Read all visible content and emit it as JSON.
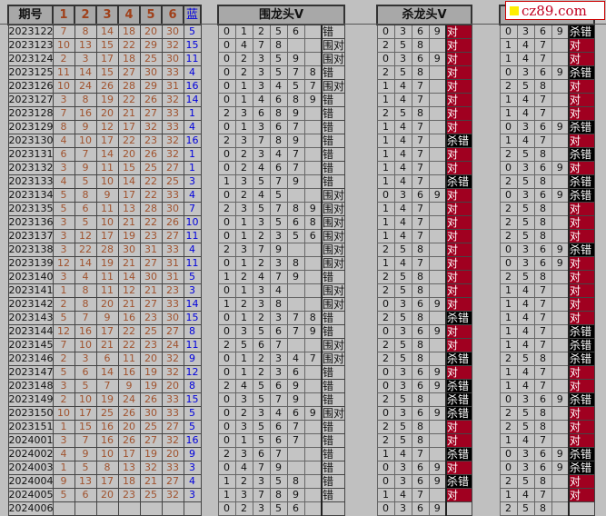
{
  "headers": {
    "period": "期号",
    "nums": [
      "1",
      "2",
      "3",
      "4",
      "5",
      "6"
    ],
    "blue": "蓝",
    "wei": "围龙头V",
    "sha1": "杀龙头V",
    "sha2": ""
  },
  "watermark": "cz89.com",
  "colors": {
    "red_number": "#a0522d",
    "blue_number": "#0000dd",
    "hit": "#a00020",
    "miss": "#000000"
  },
  "rows": [
    {
      "p": "2023122",
      "n": [
        "7",
        "8",
        "14",
        "18",
        "20",
        "30"
      ],
      "b": "5",
      "w": [
        "0",
        "1",
        "2",
        "5",
        "6",
        ""
      ],
      "wr": "错",
      "s1": [
        "0",
        "3",
        "6",
        "9"
      ],
      "r1": "对",
      "s2": [
        "0",
        "3",
        "6",
        "9"
      ],
      "r2": "杀错"
    },
    {
      "p": "2023123",
      "n": [
        "10",
        "13",
        "15",
        "22",
        "29",
        "32"
      ],
      "b": "15",
      "w": [
        "0",
        "4",
        "7",
        "8",
        "",
        ""
      ],
      "wr": "围对",
      "s1": [
        "2",
        "5",
        "8",
        ""
      ],
      "r1": "对",
      "s2": [
        "1",
        "4",
        "7",
        ""
      ],
      "r2": "对"
    },
    {
      "p": "2023124",
      "n": [
        "2",
        "3",
        "17",
        "18",
        "25",
        "30"
      ],
      "b": "11",
      "w": [
        "0",
        "2",
        "3",
        "5",
        "9",
        ""
      ],
      "wr": "围对",
      "s1": [
        "0",
        "3",
        "6",
        "9"
      ],
      "r1": "对",
      "s2": [
        "1",
        "4",
        "7",
        ""
      ],
      "r2": "对"
    },
    {
      "p": "2023125",
      "n": [
        "11",
        "14",
        "15",
        "27",
        "30",
        "33"
      ],
      "b": "4",
      "w": [
        "0",
        "2",
        "3",
        "5",
        "7",
        "8"
      ],
      "wr": "错",
      "s1": [
        "2",
        "5",
        "8",
        ""
      ],
      "r1": "对",
      "s2": [
        "0",
        "3",
        "6",
        "9"
      ],
      "r2": "杀错"
    },
    {
      "p": "2023126",
      "n": [
        "10",
        "24",
        "26",
        "28",
        "29",
        "31"
      ],
      "b": "16",
      "w": [
        "0",
        "1",
        "3",
        "4",
        "5",
        "7"
      ],
      "wr": "围对",
      "s1": [
        "1",
        "4",
        "7",
        ""
      ],
      "r1": "对",
      "s2": [
        "2",
        "5",
        "8",
        ""
      ],
      "r2": "对"
    },
    {
      "p": "2023127",
      "n": [
        "3",
        "8",
        "19",
        "22",
        "26",
        "32"
      ],
      "b": "14",
      "w": [
        "0",
        "1",
        "4",
        "6",
        "8",
        "9"
      ],
      "wr": "错",
      "s1": [
        "1",
        "4",
        "7",
        ""
      ],
      "r1": "对",
      "s2": [
        "1",
        "4",
        "7",
        ""
      ],
      "r2": "对"
    },
    {
      "p": "2023128",
      "n": [
        "7",
        "16",
        "20",
        "21",
        "27",
        "33"
      ],
      "b": "1",
      "w": [
        "2",
        "3",
        "6",
        "8",
        "9",
        ""
      ],
      "wr": "错",
      "s1": [
        "2",
        "5",
        "8",
        ""
      ],
      "r1": "对",
      "s2": [
        "1",
        "4",
        "7",
        ""
      ],
      "r2": "对"
    },
    {
      "p": "2023129",
      "n": [
        "8",
        "9",
        "12",
        "17",
        "32",
        "33"
      ],
      "b": "4",
      "w": [
        "0",
        "1",
        "3",
        "6",
        "7",
        ""
      ],
      "wr": "错",
      "s1": [
        "1",
        "4",
        "7",
        ""
      ],
      "r1": "对",
      "s2": [
        "0",
        "3",
        "6",
        "9"
      ],
      "r2": "杀错"
    },
    {
      "p": "2023130",
      "n": [
        "4",
        "10",
        "17",
        "22",
        "23",
        "32"
      ],
      "b": "16",
      "w": [
        "2",
        "3",
        "7",
        "8",
        "9",
        ""
      ],
      "wr": "错",
      "s1": [
        "1",
        "4",
        "7",
        ""
      ],
      "r1": "杀错",
      "s2": [
        "1",
        "4",
        "7",
        ""
      ],
      "r2": "对"
    },
    {
      "p": "2023131",
      "n": [
        "6",
        "7",
        "14",
        "20",
        "26",
        "32"
      ],
      "b": "1",
      "w": [
        "0",
        "2",
        "3",
        "4",
        "7",
        ""
      ],
      "wr": "错",
      "s1": [
        "1",
        "4",
        "7",
        ""
      ],
      "r1": "对",
      "s2": [
        "2",
        "5",
        "8",
        ""
      ],
      "r2": "杀错"
    },
    {
      "p": "2023132",
      "n": [
        "3",
        "9",
        "11",
        "15",
        "25",
        "27"
      ],
      "b": "1",
      "w": [
        "0",
        "2",
        "4",
        "6",
        "7",
        ""
      ],
      "wr": "错",
      "s1": [
        "1",
        "4",
        "7",
        ""
      ],
      "r1": "对",
      "s2": [
        "0",
        "3",
        "6",
        "9"
      ],
      "r2": "对"
    },
    {
      "p": "2023133",
      "n": [
        "4",
        "5",
        "10",
        "14",
        "22",
        "25"
      ],
      "b": "3",
      "w": [
        "1",
        "3",
        "5",
        "7",
        "9",
        ""
      ],
      "wr": "错",
      "s1": [
        "1",
        "4",
        "7",
        ""
      ],
      "r1": "杀错",
      "s2": [
        "2",
        "5",
        "8",
        ""
      ],
      "r2": "杀错"
    },
    {
      "p": "2023134",
      "n": [
        "5",
        "8",
        "9",
        "17",
        "22",
        "33"
      ],
      "b": "4",
      "w": [
        "0",
        "2",
        "4",
        "5",
        "",
        ""
      ],
      "wr": "围对",
      "s1": [
        "0",
        "3",
        "6",
        "9"
      ],
      "r1": "对",
      "s2": [
        "0",
        "3",
        "6",
        "9"
      ],
      "r2": "杀错"
    },
    {
      "p": "2023135",
      "n": [
        "5",
        "6",
        "11",
        "13",
        "28",
        "30"
      ],
      "b": "7",
      "w": [
        "2",
        "3",
        "5",
        "7",
        "8",
        "9"
      ],
      "wr": "围对",
      "s1": [
        "1",
        "4",
        "7",
        ""
      ],
      "r1": "对",
      "s2": [
        "2",
        "5",
        "8",
        ""
      ],
      "r2": "对"
    },
    {
      "p": "2023136",
      "n": [
        "3",
        "5",
        "10",
        "21",
        "22",
        "26"
      ],
      "b": "10",
      "w": [
        "0",
        "1",
        "3",
        "5",
        "6",
        "8"
      ],
      "wr": "围对",
      "s1": [
        "1",
        "4",
        "7",
        ""
      ],
      "r1": "对",
      "s2": [
        "2",
        "5",
        "8",
        ""
      ],
      "r2": "对"
    },
    {
      "p": "2023137",
      "n": [
        "3",
        "12",
        "17",
        "19",
        "23",
        "27"
      ],
      "b": "11",
      "w": [
        "0",
        "1",
        "2",
        "3",
        "5",
        "6"
      ],
      "wr": "围对",
      "s1": [
        "1",
        "4",
        "7",
        ""
      ],
      "r1": "对",
      "s2": [
        "2",
        "5",
        "8",
        ""
      ],
      "r2": "对"
    },
    {
      "p": "2023138",
      "n": [
        "3",
        "22",
        "28",
        "30",
        "31",
        "33"
      ],
      "b": "4",
      "w": [
        "2",
        "3",
        "7",
        "9",
        "",
        ""
      ],
      "wr": "围对",
      "s1": [
        "2",
        "5",
        "8",
        ""
      ],
      "r1": "对",
      "s2": [
        "0",
        "3",
        "6",
        "9"
      ],
      "r2": "杀错"
    },
    {
      "p": "2023139",
      "n": [
        "12",
        "14",
        "19",
        "21",
        "27",
        "31"
      ],
      "b": "11",
      "w": [
        "0",
        "1",
        "2",
        "3",
        "8",
        ""
      ],
      "wr": "围对",
      "s1": [
        "1",
        "4",
        "7",
        ""
      ],
      "r1": "对",
      "s2": [
        "0",
        "3",
        "6",
        "9"
      ],
      "r2": "对"
    },
    {
      "p": "2023140",
      "n": [
        "3",
        "4",
        "11",
        "14",
        "30",
        "31"
      ],
      "b": "5",
      "w": [
        "1",
        "2",
        "4",
        "7",
        "9",
        ""
      ],
      "wr": "错",
      "s1": [
        "2",
        "5",
        "8",
        ""
      ],
      "r1": "对",
      "s2": [
        "2",
        "5",
        "8",
        ""
      ],
      "r2": "对"
    },
    {
      "p": "2023141",
      "n": [
        "1",
        "8",
        "11",
        "12",
        "21",
        "23"
      ],
      "b": "3",
      "w": [
        "0",
        "1",
        "3",
        "4",
        "",
        ""
      ],
      "wr": "围对",
      "s1": [
        "2",
        "5",
        "8",
        ""
      ],
      "r1": "对",
      "s2": [
        "1",
        "4",
        "7",
        ""
      ],
      "r2": "对"
    },
    {
      "p": "2023142",
      "n": [
        "2",
        "8",
        "20",
        "21",
        "27",
        "33"
      ],
      "b": "14",
      "w": [
        "1",
        "2",
        "3",
        "8",
        "",
        ""
      ],
      "wr": "围对",
      "s1": [
        "0",
        "3",
        "6",
        "9"
      ],
      "r1": "对",
      "s2": [
        "1",
        "4",
        "7",
        ""
      ],
      "r2": "对"
    },
    {
      "p": "2023143",
      "n": [
        "5",
        "7",
        "9",
        "16",
        "23",
        "30"
      ],
      "b": "15",
      "w": [
        "0",
        "1",
        "2",
        "3",
        "7",
        "8"
      ],
      "wr": "错",
      "s1": [
        "2",
        "5",
        "8",
        ""
      ],
      "r1": "杀错",
      "s2": [
        "1",
        "4",
        "7",
        ""
      ],
      "r2": "对"
    },
    {
      "p": "2023144",
      "n": [
        "12",
        "16",
        "17",
        "22",
        "25",
        "27"
      ],
      "b": "8",
      "w": [
        "0",
        "3",
        "5",
        "6",
        "7",
        "9"
      ],
      "wr": "错",
      "s1": [
        "0",
        "3",
        "6",
        "9"
      ],
      "r1": "对",
      "s2": [
        "1",
        "4",
        "7",
        ""
      ],
      "r2": "杀错"
    },
    {
      "p": "2023145",
      "n": [
        "7",
        "10",
        "21",
        "22",
        "23",
        "24"
      ],
      "b": "11",
      "w": [
        "2",
        "5",
        "6",
        "7",
        "",
        ""
      ],
      "wr": "围对",
      "s1": [
        "2",
        "5",
        "8",
        ""
      ],
      "r1": "对",
      "s2": [
        "1",
        "4",
        "7",
        ""
      ],
      "r2": "杀错"
    },
    {
      "p": "2023146",
      "n": [
        "2",
        "3",
        "6",
        "11",
        "20",
        "32"
      ],
      "b": "9",
      "w": [
        "0",
        "1",
        "2",
        "3",
        "4",
        "7"
      ],
      "wr": "围对",
      "s1": [
        "2",
        "5",
        "8",
        ""
      ],
      "r1": "杀错",
      "s2": [
        "2",
        "5",
        "8",
        ""
      ],
      "r2": "杀错"
    },
    {
      "p": "2023147",
      "n": [
        "5",
        "6",
        "14",
        "16",
        "19",
        "32"
      ],
      "b": "12",
      "w": [
        "0",
        "1",
        "2",
        "3",
        "6",
        ""
      ],
      "wr": "错",
      "s1": [
        "0",
        "3",
        "6",
        "9"
      ],
      "r1": "对",
      "s2": [
        "1",
        "4",
        "7",
        ""
      ],
      "r2": "对"
    },
    {
      "p": "2023148",
      "n": [
        "3",
        "5",
        "7",
        "9",
        "19",
        "20"
      ],
      "b": "8",
      "w": [
        "2",
        "4",
        "5",
        "6",
        "9",
        ""
      ],
      "wr": "错",
      "s1": [
        "0",
        "3",
        "6",
        "9"
      ],
      "r1": "杀错",
      "s2": [
        "1",
        "4",
        "7",
        ""
      ],
      "r2": "对"
    },
    {
      "p": "2023149",
      "n": [
        "2",
        "10",
        "19",
        "24",
        "26",
        "33"
      ],
      "b": "15",
      "w": [
        "0",
        "3",
        "5",
        "7",
        "9",
        ""
      ],
      "wr": "错",
      "s1": [
        "2",
        "5",
        "8",
        ""
      ],
      "r1": "杀错",
      "s2": [
        "0",
        "3",
        "6",
        "9"
      ],
      "r2": "杀错"
    },
    {
      "p": "2023150",
      "n": [
        "10",
        "17",
        "25",
        "26",
        "30",
        "33"
      ],
      "b": "5",
      "w": [
        "0",
        "2",
        "3",
        "4",
        "6",
        "9"
      ],
      "wr": "围对",
      "s1": [
        "0",
        "3",
        "6",
        "9"
      ],
      "r1": "杀错",
      "s2": [
        "2",
        "5",
        "8",
        ""
      ],
      "r2": "对"
    },
    {
      "p": "2023151",
      "n": [
        "1",
        "15",
        "16",
        "20",
        "25",
        "27"
      ],
      "b": "5",
      "w": [
        "0",
        "3",
        "5",
        "6",
        "7",
        ""
      ],
      "wr": "错",
      "s1": [
        "2",
        "5",
        "8",
        ""
      ],
      "r1": "对",
      "s2": [
        "2",
        "5",
        "8",
        ""
      ],
      "r2": "对"
    },
    {
      "p": "2024001",
      "n": [
        "3",
        "7",
        "16",
        "26",
        "27",
        "32"
      ],
      "b": "16",
      "w": [
        "0",
        "1",
        "5",
        "6",
        "7",
        ""
      ],
      "wr": "错",
      "s1": [
        "2",
        "5",
        "8",
        ""
      ],
      "r1": "对",
      "s2": [
        "1",
        "4",
        "7",
        ""
      ],
      "r2": "对"
    },
    {
      "p": "2024002",
      "n": [
        "4",
        "9",
        "10",
        "17",
        "19",
        "20"
      ],
      "b": "9",
      "w": [
        "2",
        "3",
        "6",
        "7",
        "",
        ""
      ],
      "wr": "错",
      "s1": [
        "1",
        "4",
        "7",
        ""
      ],
      "r1": "杀错",
      "s2": [
        "0",
        "3",
        "6",
        "9"
      ],
      "r2": "杀错"
    },
    {
      "p": "2024003",
      "n": [
        "1",
        "5",
        "8",
        "13",
        "32",
        "33"
      ],
      "b": "3",
      "w": [
        "0",
        "4",
        "7",
        "9",
        "",
        ""
      ],
      "wr": "错",
      "s1": [
        "0",
        "3",
        "6",
        "9"
      ],
      "r1": "对",
      "s2": [
        "0",
        "3",
        "6",
        "9"
      ],
      "r2": "杀错"
    },
    {
      "p": "2024004",
      "n": [
        "9",
        "13",
        "17",
        "18",
        "21",
        "27"
      ],
      "b": "4",
      "w": [
        "1",
        "2",
        "3",
        "5",
        "8",
        ""
      ],
      "wr": "错",
      "s1": [
        "0",
        "3",
        "6",
        "9"
      ],
      "r1": "杀错",
      "s2": [
        "2",
        "5",
        "8",
        ""
      ],
      "r2": "对"
    },
    {
      "p": "2024005",
      "n": [
        "5",
        "6",
        "20",
        "23",
        "25",
        "32"
      ],
      "b": "3",
      "w": [
        "1",
        "3",
        "7",
        "8",
        "9",
        ""
      ],
      "wr": "错",
      "s1": [
        "1",
        "4",
        "7",
        ""
      ],
      "r1": "对",
      "s2": [
        "1",
        "4",
        "7",
        ""
      ],
      "r2": "对"
    },
    {
      "p": "2024006",
      "n": [
        "",
        "",
        "",
        "",
        "",
        ""
      ],
      "b": "",
      "w": [
        "0",
        "2",
        "3",
        "5",
        "6",
        ""
      ],
      "wr": "",
      "s1": [
        "0",
        "3",
        "6",
        "9"
      ],
      "r1": "",
      "s2": [
        "2",
        "5",
        "8",
        ""
      ],
      "r2": ""
    }
  ]
}
